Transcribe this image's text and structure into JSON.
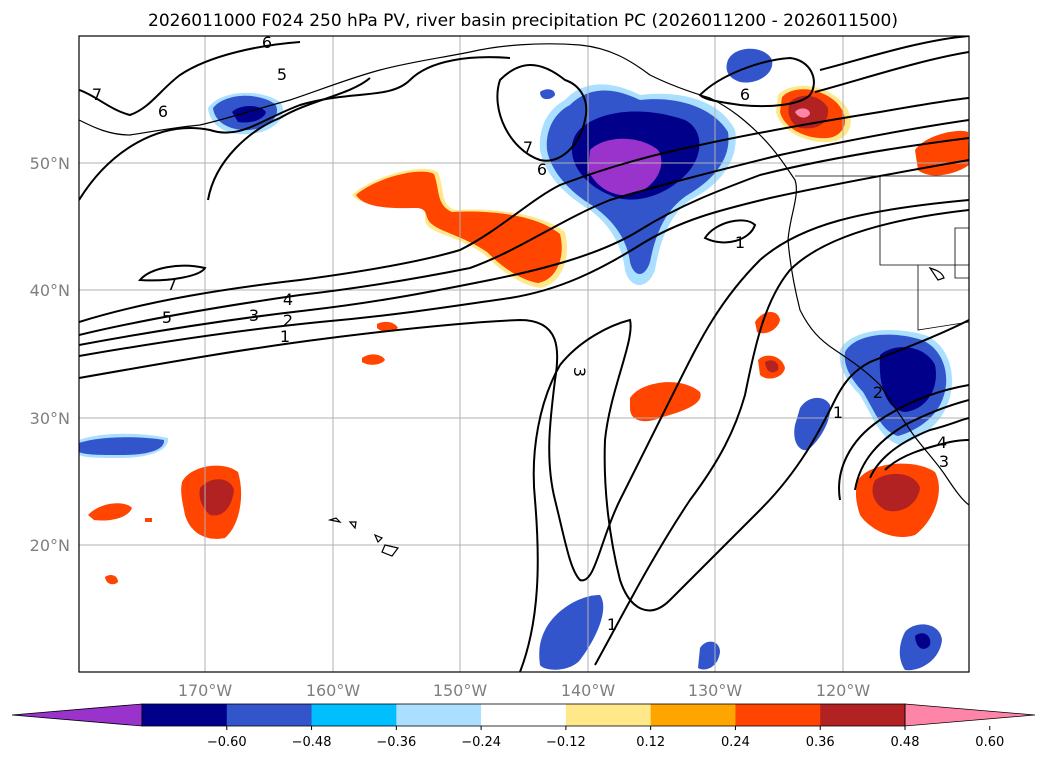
{
  "title": "2026011000 F024 250 hPa PV, river basin precipitation PC (2026011200 - 2026011500)",
  "latitude_labels": [
    "50°N",
    "40°N",
    "30°N",
    "20°N"
  ],
  "longitude_labels": [
    "170°W",
    "160°W",
    "150°W",
    "140°W",
    "130°W",
    "120°W"
  ],
  "pv_contour_labels": [
    "1",
    "2",
    "3",
    "4",
    "5",
    "6",
    "7"
  ],
  "colorbar": {
    "tick_labels": [
      "−0.60",
      "−0.48",
      "−0.36",
      "−0.24",
      "−0.12",
      "0.12",
      "0.24",
      "0.36",
      "0.48",
      "0.60"
    ],
    "colors": [
      "#9933cc",
      "#00008b",
      "#3355cc",
      "#00bfff",
      "#aadfff",
      "#ffffff",
      "#ffe88a",
      "#ffa500",
      "#ff4500",
      "#b22222",
      "#ff85a8"
    ],
    "extend": "both"
  }
}
